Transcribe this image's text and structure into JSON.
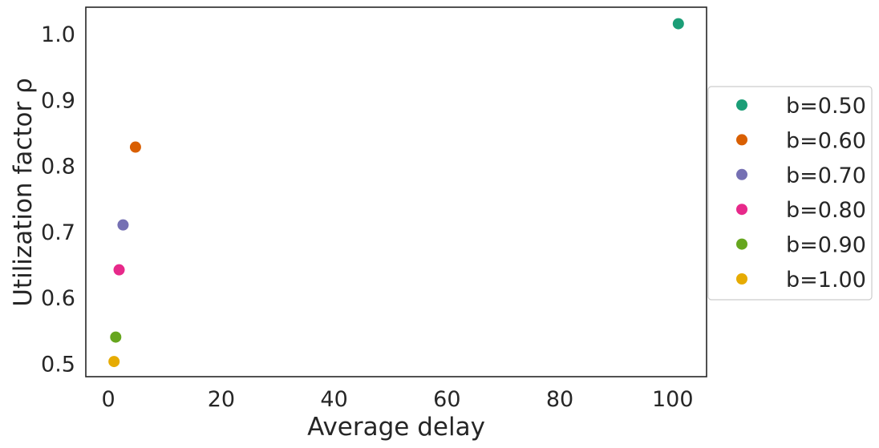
{
  "chart_data": {
    "type": "scatter",
    "title": "",
    "xlabel": "Average delay",
    "ylabel": "Utilization factor ρ",
    "xlim": [
      -4,
      106
    ],
    "ylim": [
      0.48,
      1.04
    ],
    "xticks": [
      0,
      20,
      40,
      60,
      80,
      100
    ],
    "yticks": [
      0.5,
      0.6,
      0.7,
      0.8,
      0.9,
      1.0
    ],
    "xtick_labels": [
      "0",
      "20",
      "40",
      "60",
      "80",
      "100"
    ],
    "ytick_labels": [
      "0.5",
      "0.6",
      "0.7",
      "0.8",
      "0.9",
      "1.0"
    ],
    "grid": false,
    "legend": "outside-right",
    "series": [
      {
        "name": "b=0.50",
        "color": "#1b9e77",
        "x": [
          101.0
        ],
        "y": [
          1.015
        ]
      },
      {
        "name": "b=0.60",
        "color": "#d95f02",
        "x": [
          4.8
        ],
        "y": [
          0.828
        ]
      },
      {
        "name": "b=0.70",
        "color": "#7570b3",
        "x": [
          2.6
        ],
        "y": [
          0.71
        ]
      },
      {
        "name": "b=0.80",
        "color": "#e7298a",
        "x": [
          1.9
        ],
        "y": [
          0.642
        ]
      },
      {
        "name": "b=0.90",
        "color": "#66a61e",
        "x": [
          1.3
        ],
        "y": [
          0.54
        ]
      },
      {
        "name": "b=1.00",
        "color": "#e6ab02",
        "x": [
          1.0
        ],
        "y": [
          0.503
        ]
      }
    ]
  }
}
